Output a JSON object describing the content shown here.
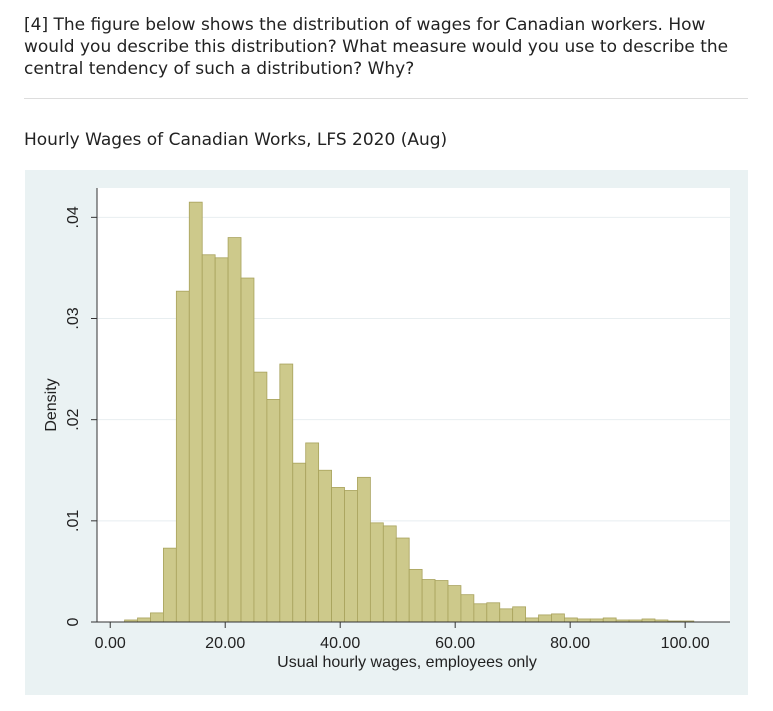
{
  "question": "[4] The figure below shows the distribution of wages for Canadian workers. How would you describe this distribution? What measure would you use to describe the central tendency of such a distribution? Why?",
  "figure_heading": "Hourly Wages of Canadian Works, LFS 2020 (Aug)",
  "chart_data": {
    "type": "histogram",
    "xlabel": "Usual hourly wages, employees only",
    "ylabel": "Density",
    "bins": [
      2.5,
      4.75,
      7,
      9.25,
      11.5,
      13.75,
      16,
      18.25,
      20.5,
      22.75,
      25,
      27.25,
      29.5,
      31.75,
      34,
      36.25,
      38.5,
      40.75,
      43,
      45.25,
      47.5,
      49.75,
      52,
      54.25,
      56.5,
      58.75,
      61,
      63.25,
      65.5,
      67.75,
      70,
      72.25,
      74.5,
      76.75,
      79,
      81.25,
      83.5,
      85.75,
      88,
      90.25,
      92.5,
      94.75,
      97,
      99.25,
      101.5
    ],
    "values": [
      0.0002,
      0.0004,
      0.0009,
      0.0073,
      0.0327,
      0.0415,
      0.0363,
      0.036,
      0.038,
      0.034,
      0.0247,
      0.022,
      0.0255,
      0.0157,
      0.0177,
      0.015,
      0.0133,
      0.013,
      0.0143,
      0.0098,
      0.0095,
      0.0083,
      0.0052,
      0.0042,
      0.0041,
      0.0036,
      0.0027,
      0.0018,
      0.0019,
      0.0013,
      0.0015,
      0.0004,
      0.0007,
      0.0008,
      0.0004,
      0.0003,
      0.0003,
      0.0004,
      0.0002,
      0.0002,
      0.0003,
      0.0002,
      0.0001,
      0.0001
    ],
    "color": "#cdc98b",
    "xlim": [
      -2.3,
      107.8
    ],
    "xticks": [
      {
        "value": 0,
        "label": "0.00"
      },
      {
        "value": 20,
        "label": "20.00"
      },
      {
        "value": 40,
        "label": "40.00"
      },
      {
        "value": 60,
        "label": "60.00"
      },
      {
        "value": 80,
        "label": "80.00"
      },
      {
        "value": 100,
        "label": "100.00"
      }
    ],
    "ylim": [
      0,
      0.0429
    ],
    "yticks": [
      0,
      {
        "value": 0.01,
        "label": ".01"
      },
      {
        "value": 0.02,
        "label": ".02"
      },
      {
        "value": 0.03,
        "label": ".03"
      },
      {
        "value": 0.04,
        "label": ".04"
      }
    ],
    "grid": true
  }
}
